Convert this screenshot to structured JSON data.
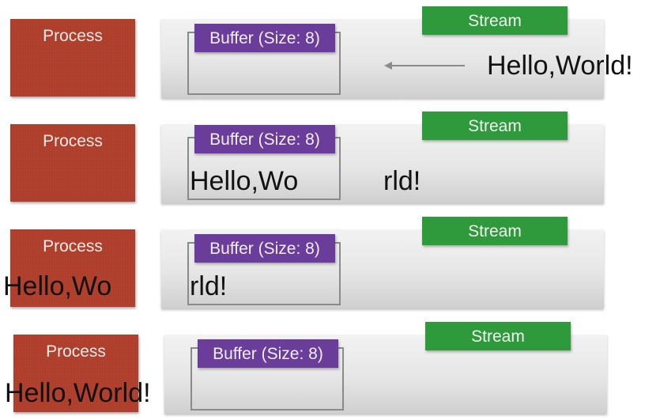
{
  "rows": [
    {
      "process_label": "Process",
      "buffer_label": "Buffer (Size: 8)",
      "stream_label": "Stream",
      "incoming_text": "Hello,World!"
    },
    {
      "process_label": "Process",
      "buffer_label": "Buffer (Size: 8)",
      "stream_label": "Stream",
      "buffer_text": "Hello,Wo",
      "stream_remaining_text": "rld!"
    },
    {
      "process_label": "Process",
      "buffer_label": "Buffer (Size: 8)",
      "stream_label": "Stream",
      "process_text": "Hello,Wo",
      "buffer_text": "rld!"
    },
    {
      "process_label": "Process",
      "buffer_label": "Buffer (Size: 8)",
      "stream_label": "Stream",
      "process_text": "Hello,World!"
    }
  ],
  "colors": {
    "process": "#b2412e",
    "buffer": "#6a3d9a",
    "stream": "#2e9a3c",
    "panel": "#e6e6e6"
  }
}
